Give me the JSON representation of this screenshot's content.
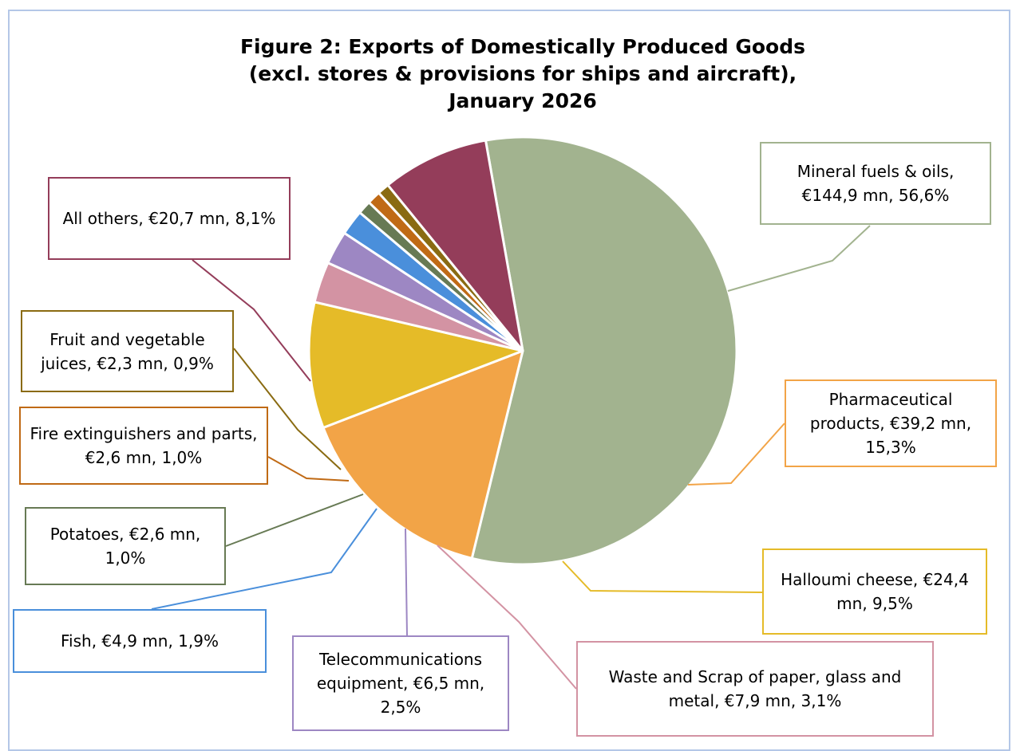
{
  "chart_data": {
    "type": "pie",
    "title": "Figure 2: Exports of Domestically Produced Goods\n(excl. stores & provisions for ships and aircraft),\nJanuary 2026",
    "unit": "€ mn",
    "slices": [
      {
        "name": "Mineral fuels & oils",
        "value": 144.9,
        "percent": 56.6,
        "label": "Mineral fuels & oils, €144,9 mn, 56,6%",
        "color": "#a2b38f"
      },
      {
        "name": "Pharmaceutical products",
        "value": 39.2,
        "percent": 15.3,
        "label": "Pharmaceutical products, €39,2 mn, 15,3%",
        "color": "#f2a447"
      },
      {
        "name": "Halloumi cheese",
        "value": 24.4,
        "percent": 9.5,
        "label": "Halloumi cheese, €24,4 mn, 9,5%",
        "color": "#e5bb28"
      },
      {
        "name": "Waste and Scrap of paper, glass and metal",
        "value": 7.9,
        "percent": 3.1,
        "label": "Waste and Scrap of paper, glass and metal, €7,9 mn, 3,1%",
        "color": "#d393a3"
      },
      {
        "name": "Telecommunications equipment",
        "value": 6.5,
        "percent": 2.5,
        "label": "Telecommunications equipment, €6,5 mn, 2,5%",
        "color": "#9d87c3"
      },
      {
        "name": "Fish",
        "value": 4.9,
        "percent": 1.9,
        "label": "Fish, €4,9 mn, 1,9%",
        "color": "#4a8fdb"
      },
      {
        "name": "Potatoes",
        "value": 2.6,
        "percent": 1.0,
        "label": "Potatoes, €2,6 mn, 1,0%",
        "color": "#677a54"
      },
      {
        "name": "Fire extinguishers and parts",
        "value": 2.6,
        "percent": 1.0,
        "label": "Fire extinguishers and parts, €2,6 mn, 1,0%",
        "color": "#c06a15"
      },
      {
        "name": "Fruit and vegetable juices",
        "value": 2.3,
        "percent": 0.9,
        "label": "Fruit and vegetable juices, €2,3 mn, 0,9%",
        "color": "#8a6b12"
      },
      {
        "name": "All others",
        "value": 20.7,
        "percent": 8.1,
        "label": "All others, €20,7 mn, 8,1%",
        "color": "#943d5a"
      }
    ]
  }
}
